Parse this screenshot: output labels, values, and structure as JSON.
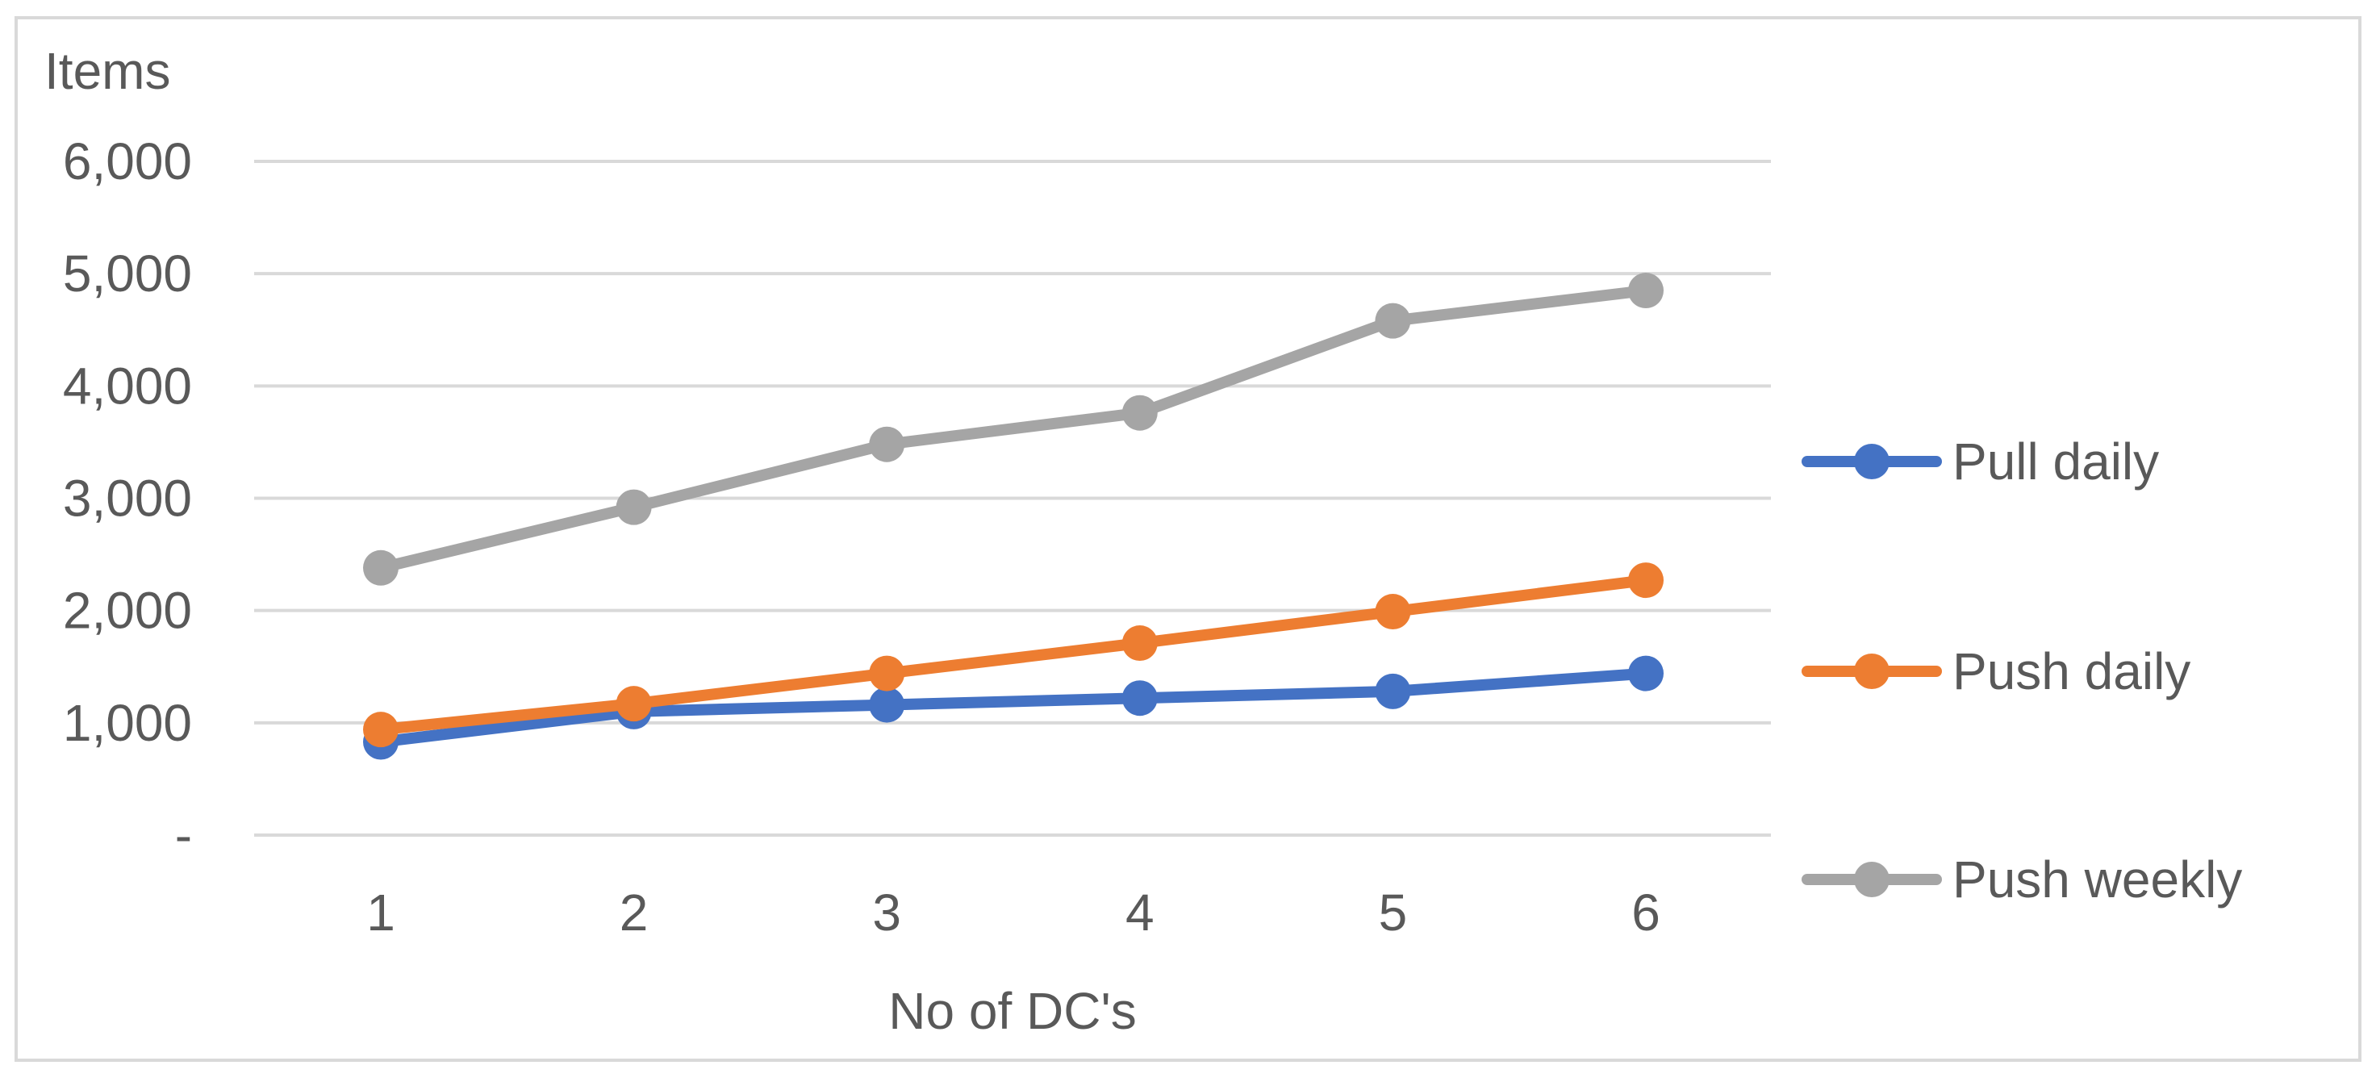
{
  "chart_data": {
    "type": "line",
    "title": "",
    "ylabel": "Items",
    "xlabel": "No of DC's",
    "categories": [
      "1",
      "2",
      "3",
      "4",
      "5",
      "6"
    ],
    "ylim": [
      0,
      6000
    ],
    "ytick_values": [
      0,
      1000,
      2000,
      3000,
      4000,
      5000,
      6000
    ],
    "ytick_labels": [
      "-",
      "1,000",
      "2,000",
      "3,000",
      "4,000",
      "5,000",
      "6,000"
    ],
    "grid": true,
    "legend_position": "right",
    "series": [
      {
        "name": "Pull daily",
        "color": "#4472C4",
        "values": [
          830,
          1100,
          1160,
          1220,
          1280,
          1440
        ]
      },
      {
        "name": "Push daily",
        "color": "#ED7D31",
        "values": [
          940,
          1170,
          1440,
          1710,
          1990,
          2270
        ]
      },
      {
        "name": "Push weekly",
        "color": "#A5A5A5",
        "values": [
          2380,
          2920,
          3480,
          3760,
          4580,
          4850
        ]
      }
    ]
  }
}
